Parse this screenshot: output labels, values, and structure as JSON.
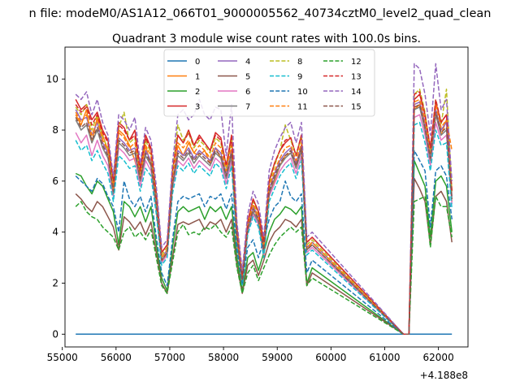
{
  "figure": {
    "suptitle": "n file: modeM0/AS1A12_066T01_9000005562_40734cztM0_level2_quad_clean"
  },
  "chart_data": {
    "type": "line",
    "title": "Quadrant 3 module wise count rates with 100.0s bins.",
    "xlabel": "",
    "ylabel": "",
    "x_offset_label": "+4.188e8",
    "xlim": [
      55050,
      62550
    ],
    "ylim": [
      -0.5,
      11.25
    ],
    "xticks": [
      55000,
      56000,
      57000,
      58000,
      59000,
      60000,
      61000,
      62000
    ],
    "yticks": [
      0,
      2,
      4,
      6,
      8,
      10
    ],
    "grid": false,
    "legend": "top-center, 4 columns",
    "x": [
      55250,
      55350,
      55450,
      55550,
      55650,
      55750,
      55850,
      55950,
      56050,
      56150,
      56250,
      56350,
      56450,
      56550,
      56650,
      56750,
      56850,
      56950,
      57050,
      57150,
      57250,
      57350,
      57450,
      57550,
      57650,
      57750,
      57850,
      57950,
      58050,
      58150,
      58250,
      58350,
      58450,
      58550,
      58650,
      58750,
      58850,
      58950,
      59050,
      59150,
      59250,
      59350,
      59450,
      59550,
      59650,
      61350,
      61450,
      61550,
      61650,
      61750,
      61850,
      61950,
      62050,
      62150,
      62250
    ],
    "series": [
      {
        "name": "0",
        "color": "#1f77b4",
        "dash": "solid",
        "values": [
          0,
          0,
          0,
          0,
          0,
          0,
          0,
          0,
          0,
          0,
          0,
          0,
          0,
          0,
          0,
          0,
          0,
          0,
          0,
          0,
          0,
          0,
          0,
          0,
          0,
          0,
          0,
          0,
          0,
          0,
          0,
          0,
          0,
          0,
          0,
          0,
          0,
          0,
          0,
          0,
          0,
          0,
          0,
          0,
          0,
          0,
          0,
          0,
          0,
          0,
          0,
          0,
          0,
          0,
          0
        ]
      },
      {
        "name": "1",
        "color": "#ff7f0e",
        "dash": "solid",
        "values": [
          8.6,
          8.2,
          8.8,
          7.5,
          8.5,
          7.8,
          7.2,
          5.8,
          8.0,
          7.8,
          7.4,
          6.8,
          6.0,
          7.4,
          6.6,
          4.8,
          2.8,
          3.2,
          5.8,
          7.4,
          7.0,
          7.5,
          7.1,
          7.0,
          7.2,
          6.7,
          7.3,
          6.9,
          6.2,
          7.1,
          3.5,
          2.0,
          4.0,
          5.0,
          4.5,
          3.0,
          5.5,
          6.0,
          6.6,
          7.0,
          7.1,
          6.6,
          7.3,
          3.3,
          3.6,
          0,
          0,
          8.8,
          9.0,
          8.2,
          6.8,
          8.8,
          7.8,
          8.4,
          5.2
        ]
      },
      {
        "name": "2",
        "color": "#2ca02c",
        "dash": "solid",
        "values": [
          6.3,
          6.2,
          5.8,
          5.5,
          6.0,
          5.8,
          5.3,
          4.8,
          3.5,
          5.2,
          5.0,
          4.6,
          5.0,
          4.4,
          5.0,
          3.5,
          2.2,
          1.7,
          3.4,
          4.8,
          5.0,
          4.8,
          4.9,
          5.0,
          4.5,
          5.0,
          4.8,
          5.0,
          4.5,
          5.0,
          3.0,
          1.7,
          3.0,
          3.2,
          2.5,
          3.2,
          4.0,
          4.5,
          4.7,
          5.0,
          4.9,
          4.7,
          5.0,
          2.0,
          2.6,
          0,
          0,
          6.8,
          6.3,
          5.8,
          3.8,
          6.0,
          6.2,
          5.8,
          4.0
        ]
      },
      {
        "name": "3",
        "color": "#d62728",
        "dash": "solid",
        "values": [
          9.2,
          8.8,
          9.0,
          8.4,
          8.7,
          8.0,
          7.6,
          6.0,
          8.3,
          8.1,
          7.6,
          8.0,
          6.5,
          7.8,
          7.3,
          5.5,
          3.2,
          3.5,
          6.4,
          7.8,
          7.5,
          8.0,
          7.4,
          7.8,
          7.5,
          7.2,
          7.9,
          7.7,
          6.6,
          7.8,
          4.2,
          2.3,
          4.4,
          5.3,
          4.8,
          3.6,
          6.0,
          6.7,
          7.2,
          7.5,
          7.7,
          7.0,
          7.8,
          3.6,
          3.8,
          0,
          0,
          9.2,
          9.4,
          8.6,
          7.3,
          9.1,
          8.3,
          8.6,
          5.6
        ]
      },
      {
        "name": "4",
        "color": "#9467bd",
        "dash": "solid",
        "values": [
          8.8,
          8.4,
          8.5,
          7.8,
          8.3,
          7.5,
          7.1,
          5.6,
          7.7,
          7.5,
          7.2,
          7.3,
          6.2,
          7.2,
          6.8,
          5.2,
          3.0,
          3.3,
          6.0,
          7.2,
          7.0,
          7.3,
          6.9,
          7.2,
          7.0,
          6.8,
          7.3,
          7.1,
          6.3,
          7.2,
          3.8,
          2.2,
          4.2,
          5.0,
          4.6,
          3.3,
          5.7,
          6.3,
          6.8,
          7.1,
          7.3,
          6.7,
          7.4,
          3.4,
          3.6,
          0,
          0,
          9.0,
          9.1,
          8.3,
          7.0,
          8.8,
          8.0,
          8.3,
          5.4
        ]
      },
      {
        "name": "5",
        "color": "#8c564b",
        "dash": "solid",
        "values": [
          5.5,
          5.3,
          5.0,
          4.8,
          5.2,
          5.0,
          4.6,
          4.2,
          3.3,
          4.6,
          4.4,
          4.1,
          4.4,
          3.9,
          4.4,
          3.2,
          2.0,
          1.6,
          3.0,
          4.3,
          4.4,
          4.3,
          4.4,
          4.5,
          4.1,
          4.4,
          4.3,
          4.5,
          4.0,
          4.5,
          2.7,
          1.6,
          2.7,
          2.9,
          2.3,
          2.9,
          3.6,
          4.0,
          4.2,
          4.5,
          4.4,
          4.2,
          4.5,
          1.9,
          2.4,
          0,
          0,
          6.1,
          5.7,
          5.2,
          3.5,
          5.4,
          5.6,
          5.2,
          3.6
        ]
      },
      {
        "name": "6",
        "color": "#e377c2",
        "dash": "solid",
        "values": [
          7.9,
          7.5,
          7.8,
          7.0,
          7.6,
          7.0,
          6.6,
          5.4,
          7.3,
          7.1,
          6.8,
          6.9,
          5.8,
          6.8,
          6.4,
          4.9,
          2.8,
          3.1,
          5.7,
          6.8,
          6.6,
          6.9,
          6.5,
          6.8,
          6.6,
          6.4,
          6.9,
          6.7,
          5.9,
          6.8,
          3.6,
          2.0,
          4.0,
          4.7,
          4.3,
          3.1,
          5.4,
          5.9,
          6.4,
          6.7,
          6.9,
          6.3,
          7.0,
          3.2,
          3.4,
          0,
          0,
          8.5,
          8.6,
          7.8,
          6.6,
          8.3,
          7.6,
          7.8,
          5.1
        ]
      },
      {
        "name": "7",
        "color": "#7f7f7f",
        "dash": "solid",
        "values": [
          8.4,
          8.0,
          8.2,
          7.5,
          8.0,
          7.3,
          6.9,
          5.5,
          7.5,
          7.3,
          7.0,
          7.1,
          6.0,
          7.0,
          6.6,
          5.0,
          2.9,
          3.2,
          5.8,
          7.0,
          6.8,
          7.1,
          6.7,
          7.0,
          6.8,
          6.6,
          7.1,
          6.9,
          6.1,
          7.0,
          3.7,
          2.1,
          4.1,
          4.8,
          4.4,
          3.2,
          5.5,
          6.1,
          6.6,
          6.9,
          7.1,
          6.5,
          7.2,
          3.3,
          3.5,
          0,
          0,
          8.8,
          8.9,
          8.0,
          6.8,
          8.6,
          7.8,
          8.0,
          5.3
        ]
      },
      {
        "name": "8",
        "color": "#bcbd22",
        "dash": "dashed",
        "values": [
          8.9,
          8.6,
          9.0,
          8.0,
          8.6,
          7.7,
          7.3,
          5.8,
          8.1,
          8.7,
          7.5,
          7.7,
          6.3,
          7.6,
          7.1,
          5.4,
          3.1,
          3.4,
          6.3,
          8.2,
          7.6,
          7.9,
          7.3,
          7.6,
          7.4,
          7.1,
          7.7,
          7.5,
          6.5,
          7.6,
          4.0,
          2.3,
          4.3,
          5.2,
          4.7,
          3.5,
          5.9,
          6.6,
          7.2,
          8.2,
          7.6,
          7.0,
          7.7,
          3.5,
          3.7,
          0,
          0,
          9.4,
          9.6,
          8.7,
          7.2,
          9.2,
          8.2,
          9.6,
          5.6
        ]
      },
      {
        "name": "9",
        "color": "#17becf",
        "dash": "dashed",
        "values": [
          7.6,
          7.2,
          7.4,
          6.8,
          7.2,
          6.7,
          6.3,
          5.2,
          7.0,
          6.8,
          6.5,
          6.6,
          5.6,
          6.5,
          6.2,
          4.7,
          2.7,
          3.0,
          5.5,
          6.6,
          6.4,
          6.7,
          6.3,
          6.6,
          6.4,
          6.2,
          6.7,
          6.5,
          5.7,
          6.6,
          3.5,
          1.9,
          3.9,
          4.6,
          4.2,
          3.0,
          5.2,
          5.7,
          6.2,
          6.5,
          6.7,
          6.1,
          6.8,
          3.1,
          3.3,
          0,
          0,
          8.2,
          8.3,
          7.5,
          6.4,
          8.0,
          7.4,
          7.5,
          4.9
        ]
      },
      {
        "name": "10",
        "color": "#1f77b4",
        "dash": "dashed",
        "values": [
          6.2,
          6.0,
          5.8,
          5.6,
          6.1,
          5.9,
          5.4,
          5.0,
          4.0,
          6.0,
          5.3,
          5.0,
          5.4,
          4.8,
          5.4,
          3.8,
          2.4,
          1.9,
          3.7,
          5.2,
          5.4,
          5.3,
          5.4,
          5.5,
          5.0,
          5.4,
          5.3,
          5.5,
          4.9,
          5.5,
          3.3,
          2.0,
          3.4,
          3.7,
          3.0,
          3.7,
          4.5,
          5.0,
          5.2,
          6.0,
          5.4,
          5.2,
          5.5,
          2.4,
          2.9,
          0,
          0,
          7.2,
          6.8,
          6.4,
          4.2,
          6.4,
          6.6,
          6.2,
          4.5
        ]
      },
      {
        "name": "11",
        "color": "#ff7f0e",
        "dash": "dashed",
        "values": [
          8.7,
          8.3,
          8.6,
          7.8,
          8.4,
          7.6,
          7.2,
          5.7,
          7.9,
          7.7,
          7.3,
          7.5,
          6.2,
          7.4,
          7.0,
          5.3,
          3.0,
          3.3,
          6.1,
          7.5,
          7.3,
          7.6,
          7.1,
          7.4,
          7.2,
          6.9,
          7.5,
          7.3,
          6.4,
          7.4,
          3.9,
          2.2,
          4.2,
          5.1,
          4.6,
          3.4,
          5.8,
          6.4,
          6.9,
          7.3,
          7.4,
          6.8,
          7.5,
          3.4,
          3.6,
          0,
          0,
          9.1,
          9.2,
          8.4,
          7.1,
          9.0,
          8.1,
          8.4,
          7.2
        ]
      },
      {
        "name": "12",
        "color": "#2ca02c",
        "dash": "dashed",
        "values": [
          5.0,
          5.2,
          4.8,
          4.6,
          4.5,
          4.2,
          4.0,
          3.8,
          3.3,
          4.0,
          4.2,
          3.8,
          4.0,
          3.7,
          4.1,
          3.0,
          1.9,
          1.6,
          2.8,
          4.0,
          4.3,
          3.9,
          4.0,
          3.9,
          4.2,
          4.1,
          4.3,
          4.0,
          3.8,
          4.2,
          2.6,
          1.6,
          2.4,
          2.7,
          2.1,
          2.6,
          3.1,
          3.5,
          3.8,
          4.0,
          4.2,
          4.0,
          4.2,
          1.9,
          2.2,
          0,
          0,
          5.2,
          5.3,
          5.4,
          3.4,
          5.4,
          5.0,
          5.0,
          3.8
        ]
      },
      {
        "name": "13",
        "color": "#d62728",
        "dash": "dashed",
        "values": [
          9.0,
          8.7,
          8.9,
          8.2,
          8.6,
          7.9,
          7.5,
          6.0,
          8.2,
          8.0,
          7.6,
          7.8,
          6.4,
          7.7,
          7.2,
          5.5,
          3.2,
          3.5,
          6.4,
          7.8,
          7.5,
          7.9,
          7.4,
          7.7,
          7.5,
          7.2,
          7.8,
          7.6,
          6.6,
          7.7,
          4.1,
          2.3,
          4.4,
          5.3,
          4.8,
          3.6,
          6.0,
          6.7,
          7.2,
          7.6,
          7.7,
          7.0,
          7.8,
          3.6,
          3.8,
          0,
          0,
          9.4,
          9.5,
          8.6,
          7.3,
          9.2,
          8.3,
          8.6,
          5.6
        ]
      },
      {
        "name": "14",
        "color": "#9467bd",
        "dash": "dashed",
        "values": [
          9.4,
          9.2,
          9.5,
          8.6,
          9.2,
          8.3,
          7.8,
          6.2,
          8.6,
          8.4,
          8.0,
          8.5,
          6.7,
          8.1,
          7.6,
          5.8,
          3.4,
          3.7,
          6.7,
          8.6,
          8.8,
          8.4,
          8.6,
          9.2,
          8.6,
          8.4,
          8.9,
          8.8,
          7.0,
          9.0,
          4.4,
          2.5,
          4.7,
          5.6,
          5.1,
          3.8,
          6.4,
          7.2,
          7.7,
          8.1,
          8.3,
          7.5,
          8.3,
          3.8,
          4.0,
          0,
          0,
          10.6,
          10.4,
          9.4,
          7.8,
          10.6,
          8.8,
          9.2,
          6.0
        ]
      },
      {
        "name": "15",
        "color": "#8c564b",
        "dash": "dashed",
        "values": [
          8.5,
          8.1,
          8.3,
          7.6,
          8.1,
          7.4,
          7.0,
          5.6,
          7.6,
          7.4,
          7.1,
          7.2,
          6.1,
          7.1,
          6.7,
          5.1,
          2.9,
          3.2,
          5.9,
          7.1,
          6.9,
          7.2,
          6.8,
          7.1,
          6.9,
          6.7,
          7.2,
          7.0,
          6.2,
          7.1,
          3.8,
          2.1,
          4.1,
          4.9,
          4.5,
          3.3,
          5.6,
          6.2,
          6.7,
          7.0,
          7.2,
          6.6,
          7.3,
          3.3,
          3.5,
          0,
          0,
          8.9,
          9.0,
          8.1,
          6.9,
          8.7,
          7.9,
          8.1,
          5.3
        ]
      }
    ]
  }
}
